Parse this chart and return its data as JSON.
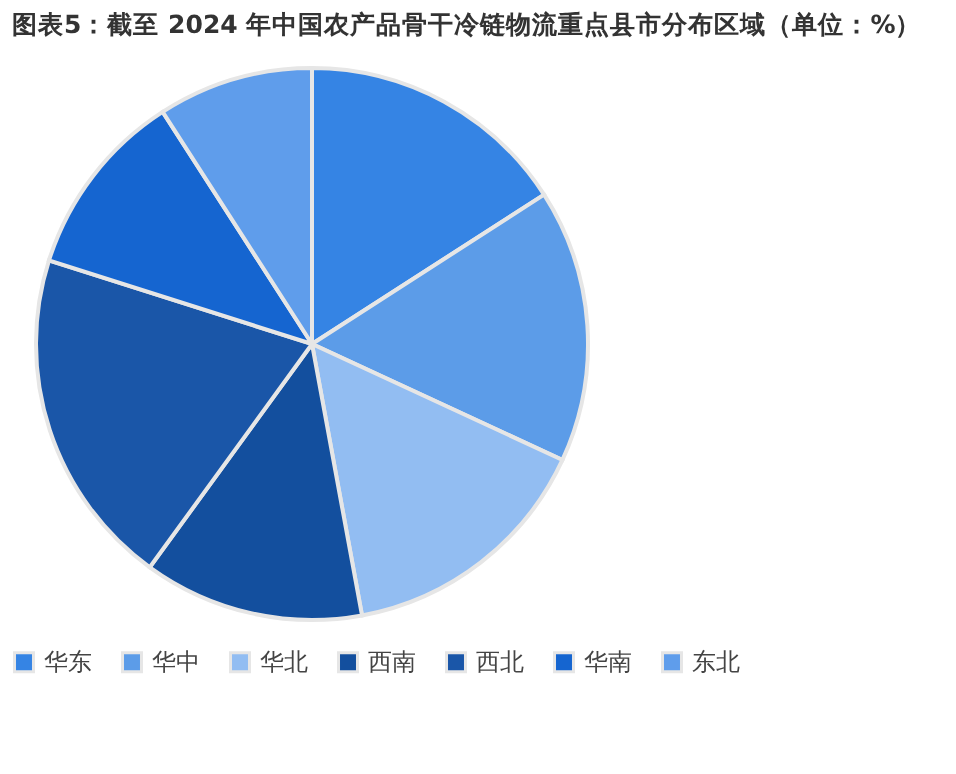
{
  "chart_data": {
    "type": "pie",
    "title": "图表5：截至 2024 年中国农产品骨干冷链物流重点县市分布区域（单位：%）",
    "categories": [
      "华东",
      "华中",
      "华北",
      "西南",
      "西北",
      "华南",
      "东北"
    ],
    "values": [
      15.9,
      16.0,
      15.2,
      12.9,
      19.9,
      11.0,
      9.1
    ],
    "colors": [
      "#3584e4",
      "#5c9ce8",
      "#92bdf2",
      "#134f9e",
      "#1a56a8",
      "#1565d0",
      "#5f9deb"
    ],
    "legend": "bottom"
  }
}
